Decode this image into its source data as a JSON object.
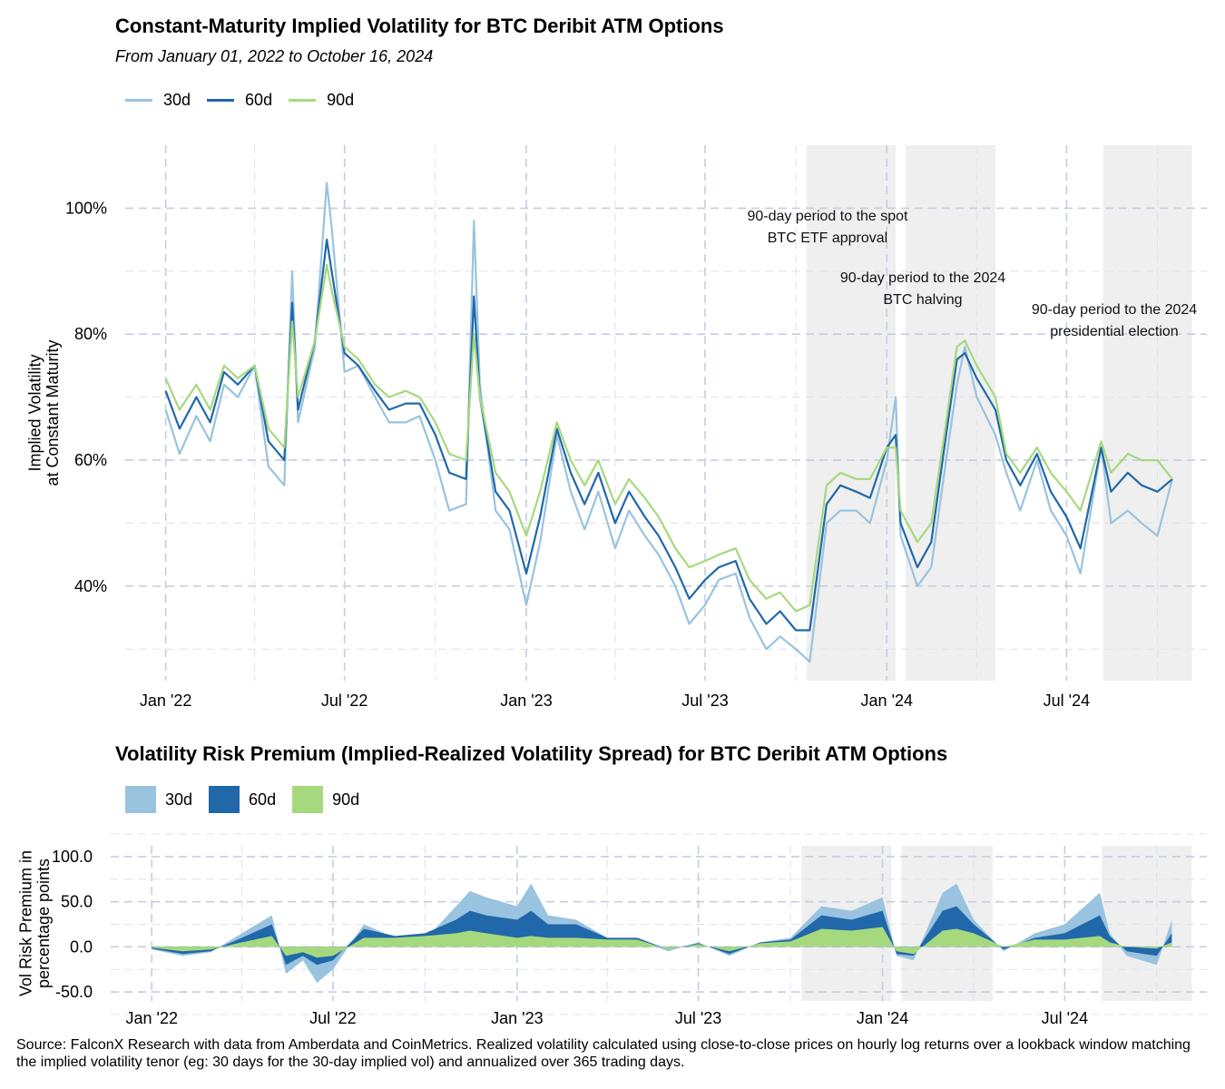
{
  "chart_data": [
    {
      "type": "line",
      "title": "Constant-Maturity Implied Volatility for BTC Deribit ATM Options",
      "subtitle": "From January 01, 2022 to October 16, 2024",
      "ylabel_lines": [
        "Implied Volatility",
        "at Constant Maturity"
      ],
      "xlabel": "",
      "x_ticks": [
        "Jan '22",
        "Jul '22",
        "Jan '23",
        "Jul '23",
        "Jan '24",
        "Jul '24"
      ],
      "y_ticks": [
        "40%",
        "60%",
        "80%",
        "100%"
      ],
      "y_tick_values": [
        40,
        60,
        80,
        100
      ],
      "ylim": [
        25,
        110
      ],
      "xlim": [
        "2021-11-21",
        "2024-11-20"
      ],
      "legend_position": "top-left",
      "grid": true,
      "dates": [
        "2022-01-01",
        "2022-01-15",
        "2022-02-01",
        "2022-02-15",
        "2022-03-01",
        "2022-03-15",
        "2022-04-01",
        "2022-04-15",
        "2022-05-01",
        "2022-05-09",
        "2022-05-15",
        "2022-06-01",
        "2022-06-13",
        "2022-06-18",
        "2022-07-01",
        "2022-07-15",
        "2022-08-01",
        "2022-08-15",
        "2022-09-01",
        "2022-09-15",
        "2022-10-01",
        "2022-10-15",
        "2022-11-01",
        "2022-11-09",
        "2022-11-15",
        "2022-12-01",
        "2022-12-15",
        "2023-01-01",
        "2023-01-15",
        "2023-02-01",
        "2023-02-15",
        "2023-03-01",
        "2023-03-15",
        "2023-04-01",
        "2023-04-15",
        "2023-05-01",
        "2023-05-15",
        "2023-06-01",
        "2023-06-15",
        "2023-07-01",
        "2023-07-15",
        "2023-08-01",
        "2023-08-15",
        "2023-09-01",
        "2023-09-15",
        "2023-10-01",
        "2023-10-15",
        "2023-11-01",
        "2023-11-15",
        "2023-12-01",
        "2023-12-15",
        "2024-01-01",
        "2024-01-10",
        "2024-01-15",
        "2024-02-01",
        "2024-02-15",
        "2024-03-01",
        "2024-03-12",
        "2024-03-20",
        "2024-04-01",
        "2024-04-20",
        "2024-05-01",
        "2024-05-15",
        "2024-06-01",
        "2024-06-15",
        "2024-07-01",
        "2024-07-15",
        "2024-08-05",
        "2024-08-15",
        "2024-09-01",
        "2024-09-15",
        "2024-10-01",
        "2024-10-16"
      ],
      "series": [
        {
          "name": "30d",
          "color": "#99c3df",
          "values": [
            68,
            61,
            67,
            63,
            72,
            70,
            75,
            59,
            56,
            90,
            66,
            78,
            104,
            97,
            74,
            75,
            70,
            66,
            66,
            67,
            60,
            52,
            53,
            98,
            72,
            52,
            49,
            37,
            47,
            64,
            55,
            49,
            55,
            46,
            52,
            48,
            45,
            40,
            34,
            37,
            41,
            42,
            35,
            30,
            32,
            30,
            28,
            50,
            52,
            52,
            50,
            60,
            70,
            48,
            40,
            43,
            60,
            72,
            78,
            70,
            64,
            58,
            52,
            60,
            52,
            48,
            42,
            62,
            50,
            52,
            50,
            48,
            57
          ]
        },
        {
          "name": "60d",
          "color": "#2068a9",
          "values": [
            71,
            65,
            70,
            66,
            74,
            72,
            75,
            63,
            60,
            85,
            68,
            79,
            95,
            90,
            77,
            75,
            71,
            68,
            69,
            69,
            64,
            58,
            57,
            86,
            70,
            55,
            52,
            42,
            51,
            65,
            58,
            53,
            58,
            50,
            55,
            51,
            48,
            43,
            38,
            41,
            43,
            44,
            38,
            34,
            36,
            33,
            33,
            53,
            56,
            55,
            54,
            62,
            64,
            50,
            43,
            47,
            64,
            76,
            77,
            73,
            68,
            60,
            56,
            61,
            55,
            51,
            46,
            62,
            55,
            58,
            56,
            55,
            57
          ]
        },
        {
          "name": "90d",
          "color": "#a6d97e",
          "values": [
            73,
            68,
            72,
            68,
            75,
            73,
            75,
            65,
            62,
            82,
            70,
            79,
            91,
            87,
            78,
            76,
            72,
            70,
            71,
            70,
            66,
            61,
            60,
            80,
            70,
            58,
            55,
            48,
            55,
            66,
            60,
            56,
            60,
            53,
            57,
            54,
            51,
            46,
            43,
            44,
            45,
            46,
            41,
            38,
            39,
            36,
            37,
            56,
            58,
            57,
            57,
            62,
            62,
            52,
            47,
            50,
            66,
            78,
            79,
            75,
            70,
            61,
            58,
            62,
            58,
            55,
            52,
            63,
            58,
            61,
            60,
            60,
            57
          ]
        }
      ],
      "shaded_periods": [
        {
          "start": "2023-10-12",
          "end": "2024-01-10",
          "label_lines": [
            "90-day period to the spot",
            "BTC ETF approval"
          ]
        },
        {
          "start": "2024-01-20",
          "end": "2024-04-20",
          "label_lines": [
            "90-day period to the 2024",
            "BTC halving"
          ]
        },
        {
          "start": "2024-08-07",
          "end": "2024-11-05",
          "label_lines": [
            "90-day period to the 2024",
            "presidential election"
          ]
        }
      ]
    },
    {
      "type": "area",
      "title": "Volatility Risk Premium (Implied-Realized Volatility Spread) for BTC Deribit ATM Options",
      "ylabel_lines": [
        "Vol Risk Premium in",
        "percentage points"
      ],
      "x_ticks": [
        "Jan '22",
        "Jul '22",
        "Jan '23",
        "Jul '23",
        "Jan '24",
        "Jul '24"
      ],
      "y_ticks": [
        "100.0",
        "50.0",
        "0.0",
        "-50.0"
      ],
      "y_tick_values": [
        100,
        50,
        0,
        -50
      ],
      "ylim": [
        -60,
        112
      ],
      "xlim": [
        "2021-11-21",
        "2024-11-20"
      ],
      "legend_position": "top-left",
      "grid": true,
      "dates": [
        "2022-01-01",
        "2022-02-01",
        "2022-03-01",
        "2022-04-01",
        "2022-05-01",
        "2022-05-15",
        "2022-06-01",
        "2022-06-15",
        "2022-07-01",
        "2022-08-01",
        "2022-09-01",
        "2022-10-01",
        "2022-11-01",
        "2022-11-15",
        "2022-12-01",
        "2023-01-01",
        "2023-01-15",
        "2023-02-01",
        "2023-03-01",
        "2023-04-01",
        "2023-05-01",
        "2023-06-01",
        "2023-07-01",
        "2023-08-01",
        "2023-09-01",
        "2023-10-01",
        "2023-11-01",
        "2023-12-01",
        "2024-01-01",
        "2024-01-15",
        "2024-02-01",
        "2024-03-01",
        "2024-03-15",
        "2024-04-01",
        "2024-05-01",
        "2024-06-01",
        "2024-07-01",
        "2024-08-05",
        "2024-08-15",
        "2024-09-01",
        "2024-10-01",
        "2024-10-16"
      ],
      "series": [
        {
          "name": "30d",
          "color": "#99c3df",
          "values": [
            -3,
            -10,
            -6,
            15,
            35,
            -30,
            -15,
            -40,
            -25,
            25,
            10,
            8,
            45,
            62,
            55,
            45,
            70,
            35,
            30,
            10,
            8,
            -5,
            5,
            -10,
            5,
            10,
            45,
            40,
            55,
            -10,
            -15,
            60,
            70,
            30,
            -5,
            15,
            25,
            60,
            15,
            -10,
            -20,
            30
          ]
        },
        {
          "name": "60d",
          "color": "#2068a9",
          "values": [
            -2,
            -8,
            -5,
            10,
            25,
            -20,
            -10,
            -20,
            -15,
            20,
            12,
            15,
            30,
            40,
            35,
            30,
            40,
            25,
            25,
            10,
            10,
            -3,
            4,
            -8,
            5,
            8,
            35,
            30,
            40,
            -8,
            -10,
            40,
            45,
            25,
            -3,
            10,
            15,
            35,
            12,
            -5,
            -10,
            15
          ]
        },
        {
          "name": "90d",
          "color": "#a6d97e",
          "values": [
            -1,
            -5,
            -3,
            5,
            12,
            -10,
            -6,
            -12,
            -10,
            10,
            10,
            12,
            15,
            18,
            15,
            10,
            12,
            10,
            10,
            8,
            8,
            -3,
            3,
            -5,
            4,
            6,
            20,
            18,
            22,
            -5,
            -8,
            18,
            20,
            15,
            0,
            8,
            8,
            12,
            5,
            0,
            -2,
            5
          ]
        }
      ],
      "shaded_periods": [
        {
          "start": "2023-10-12",
          "end": "2024-01-10"
        },
        {
          "start": "2024-01-20",
          "end": "2024-04-20"
        },
        {
          "start": "2024-08-07",
          "end": "2024-11-05"
        }
      ]
    }
  ],
  "source_text": "Source: FalconX Research with data from Amberdata and CoinMetrics. Realized volatility calculated using close-to-close prices on hourly log returns over a lookback window matching the implied volatility tenor (eg: 30 days for the 30-day implied vol) and annualized over 365 trading days."
}
